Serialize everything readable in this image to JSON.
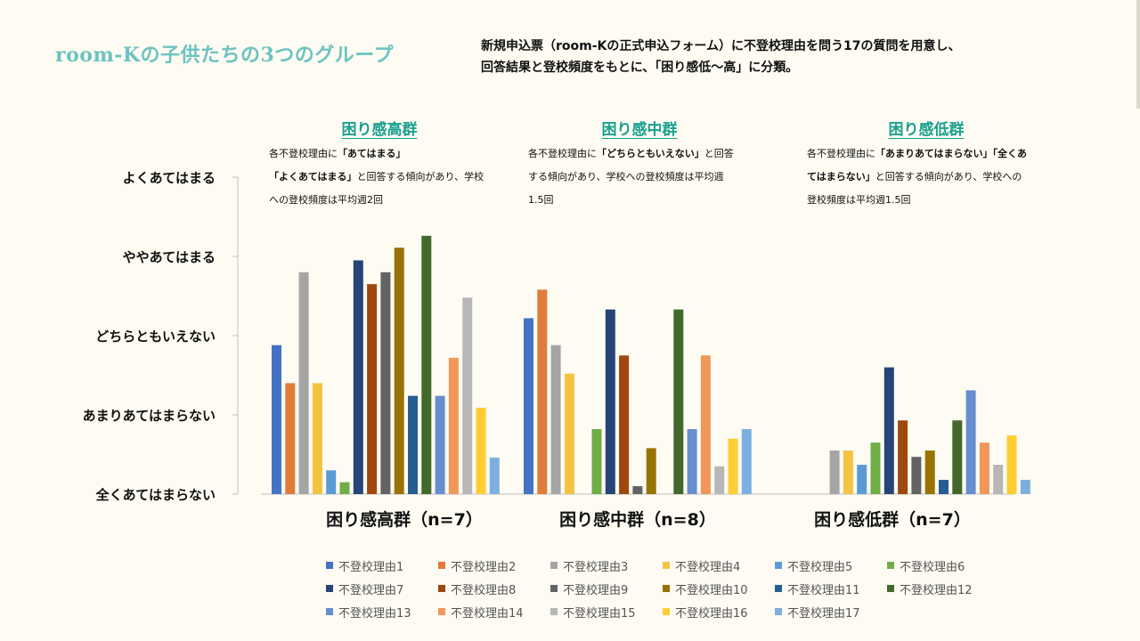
{
  "header": {
    "title": "room-Kの子供たちの3つのグループ",
    "desc_line1": "新規申込票（room-Kの正式申込フォーム）に不登校理由を問う17の質問を用意し、",
    "desc_line2": "回答結果と登校頻度をもとに、「困り感低〜高」に分類。"
  },
  "groups": [
    {
      "heading": "困り感高群",
      "desc_l1_pre": "各不登校理由に",
      "desc_l1_bold": "「あてはまる」",
      "desc_l2_bold": "「よくあてはまる」",
      "desc_l2_post": "と回答する傾向があり、学校",
      "desc_l3": "への登校頻度は平均週2回"
    },
    {
      "heading": "困り感中群",
      "desc_l1_pre": "各不登校理由に",
      "desc_l1_bold": "「どちらともいえない」",
      "desc_l1_post": "と回答",
      "desc_l2": "する傾向があり、学校への登校頻度は平均週",
      "desc_l3": "1.5回"
    },
    {
      "heading": "困り感低群",
      "desc_l1_pre": "各不登校理由に",
      "desc_l1_bold": "「あまりあてはまらない」「全くあ",
      "desc_l2_bold": "てはまらない」",
      "desc_l2_post": "と回答する傾向があり、学校への",
      "desc_l3": "登校頻度は平均週1.5回"
    }
  ],
  "chart_data": {
    "type": "bar",
    "categories": [
      "困り感高群（n=7）",
      "困り感中群（n=8）",
      "困り感低群（n=7）"
    ],
    "y_tick_labels": [
      "全くあてはまらない",
      "あまりあてはまらない",
      "どちらともいえない",
      "ややあてはまる",
      "よくあてはまる"
    ],
    "ylim": [
      1,
      5
    ],
    "grid": false,
    "legend_position": "bottom",
    "series": [
      {
        "name": "不登校理由1",
        "color": "#4472c4",
        "values": [
          2.88,
          3.22,
          null
        ]
      },
      {
        "name": "不登校理由2",
        "color": "#e07b39",
        "values": [
          2.4,
          3.58,
          null
        ]
      },
      {
        "name": "不登校理由3",
        "color": "#a5a5a5",
        "values": [
          3.8,
          2.88,
          1.55
        ]
      },
      {
        "name": "不登校理由4",
        "color": "#f5c342",
        "values": [
          2.4,
          2.52,
          1.55
        ]
      },
      {
        "name": "不登校理由5",
        "color": "#5b9bd5",
        "values": [
          1.3,
          null,
          1.37
        ]
      },
      {
        "name": "不登校理由6",
        "color": "#70ad47",
        "values": [
          1.15,
          1.82,
          1.65
        ]
      },
      {
        "name": "不登校理由7",
        "color": "#264478",
        "values": [
          3.95,
          3.33,
          2.6
        ]
      },
      {
        "name": "不登校理由8",
        "color": "#9e480e",
        "values": [
          3.65,
          2.75,
          1.93
        ]
      },
      {
        "name": "不登校理由9",
        "color": "#636363",
        "values": [
          3.8,
          1.1,
          1.47
        ]
      },
      {
        "name": "不登校理由10",
        "color": "#997300",
        "values": [
          4.11,
          1.58,
          1.55
        ]
      },
      {
        "name": "不登校理由11",
        "color": "#255e91",
        "values": [
          2.24,
          null,
          1.18
        ]
      },
      {
        "name": "不登校理由12",
        "color": "#43682b",
        "values": [
          4.26,
          3.33,
          1.93
        ]
      },
      {
        "name": "不登校理由13",
        "color": "#698ed0",
        "values": [
          2.24,
          1.82,
          2.31
        ]
      },
      {
        "name": "不登校理由14",
        "color": "#f1975a",
        "values": [
          2.72,
          2.75,
          1.65
        ]
      },
      {
        "name": "不登校理由15",
        "color": "#b7b7b7",
        "values": [
          3.48,
          1.35,
          1.37
        ]
      },
      {
        "name": "不登校理由16",
        "color": "#ffcd33",
        "values": [
          2.09,
          1.7,
          1.74
        ]
      },
      {
        "name": "不登校理由17",
        "color": "#7cafdd",
        "values": [
          1.46,
          1.82,
          1.18
        ]
      }
    ]
  }
}
